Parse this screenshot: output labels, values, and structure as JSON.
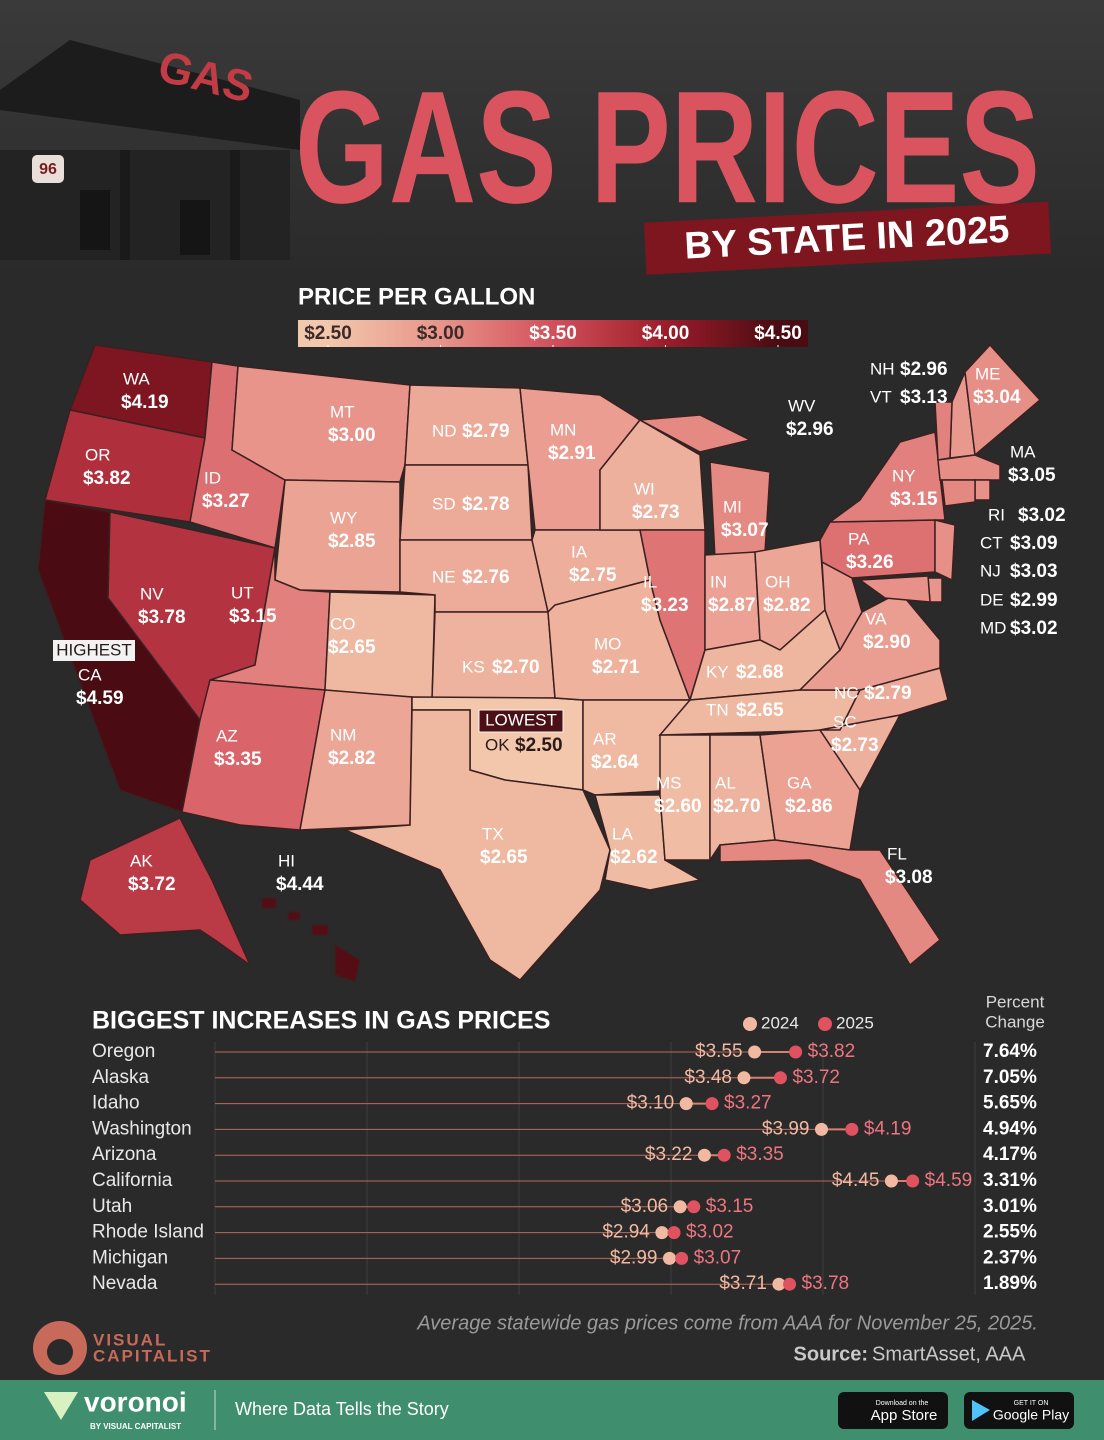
{
  "header": {
    "sign": "GAS",
    "route": "96",
    "title": "GAS PRICES",
    "subtitle": "BY STATE IN 2025"
  },
  "chart_data": [
    {
      "type": "choropleth",
      "title": "PRICE PER GALLON",
      "legend_ticks": [
        {
          "value": 2.5,
          "label": "$2.50"
        },
        {
          "value": 3.0,
          "label": "$3.00"
        },
        {
          "value": 3.5,
          "label": "$3.50"
        },
        {
          "value": 4.0,
          "label": "$4.00"
        },
        {
          "value": 4.5,
          "label": "$4.50"
        }
      ],
      "colors": [
        "#f2c7ab",
        "#e8948a",
        "#d2505b",
        "#9c1d2a",
        "#4a0b12"
      ],
      "categories": [
        "WA",
        "OR",
        "CA",
        "NV",
        "ID",
        "MT",
        "WY",
        "UT",
        "CO",
        "AZ",
        "NM",
        "ND",
        "SD",
        "NE",
        "KS",
        "OK",
        "TX",
        "MN",
        "IA",
        "MO",
        "AR",
        "LA",
        "WI",
        "IL",
        "MS",
        "MI",
        "IN",
        "OH",
        "KY",
        "TN",
        "AL",
        "GA",
        "FL",
        "SC",
        "NC",
        "VA",
        "WV",
        "PA",
        "NY",
        "NH",
        "VT",
        "ME",
        "MA",
        "RI",
        "CT",
        "NJ",
        "DE",
        "MD",
        "AK",
        "HI"
      ],
      "values": [
        4.19,
        3.82,
        4.59,
        3.78,
        3.27,
        3.0,
        2.85,
        3.15,
        2.65,
        3.35,
        2.82,
        2.79,
        2.78,
        2.76,
        2.7,
        2.5,
        2.65,
        2.91,
        2.75,
        2.71,
        2.64,
        2.62,
        2.73,
        3.23,
        2.6,
        3.07,
        2.87,
        2.82,
        2.68,
        2.65,
        2.7,
        2.86,
        3.08,
        2.73,
        2.79,
        2.9,
        2.96,
        3.26,
        3.15,
        2.96,
        3.13,
        3.04,
        3.05,
        3.02,
        3.09,
        3.03,
        2.99,
        3.02,
        3.72,
        4.44
      ],
      "value_labels": [
        "$4.19",
        "$3.82",
        "$4.59",
        "$3.78",
        "$3.27",
        "$3.00",
        "$2.85",
        "$3.15",
        "$2.65",
        "$3.35",
        "$2.82",
        "$2.79",
        "$2.78",
        "$2.76",
        "$2.70",
        "$2.50",
        "$2.65",
        "$2.91",
        "$2.75",
        "$2.71",
        "$2.64",
        "$2.62",
        "$2.73",
        "$3.23",
        "$2.60",
        "$3.07",
        "$2.87",
        "$2.82",
        "$2.68",
        "$2.65",
        "$2.70",
        "$2.86",
        "$3.08",
        "$2.73",
        "$2.79",
        "$2.90",
        "$2.96",
        "$3.26",
        "$3.15",
        "$2.96",
        "$3.13",
        "$3.04",
        "$3.05",
        "$3.02",
        "$3.09",
        "$3.03",
        "$2.99",
        "$3.02",
        "$3.72",
        "$4.44"
      ],
      "annotations": [
        "HIGHEST",
        "LOWEST"
      ]
    },
    {
      "type": "dumbbell",
      "title": "BIGGEST INCREASES IN GAS PRICES",
      "categories": [
        "Oregon",
        "Alaska",
        "Idaho",
        "Washington",
        "Arizona",
        "California",
        "Utah",
        "Rhode Island",
        "Michigan",
        "Nevada"
      ],
      "series": [
        {
          "name": "2024",
          "color": "#f2b9a2",
          "values": [
            3.55,
            3.48,
            3.1,
            3.99,
            3.22,
            4.45,
            3.06,
            2.94,
            2.99,
            3.71
          ],
          "value_labels": [
            "$3.55",
            "$3.48",
            "$3.10",
            "$3.99",
            "$3.22",
            "$4.45",
            "$3.06",
            "$2.94",
            "$2.99",
            "$3.71"
          ]
        },
        {
          "name": "2025",
          "color": "#e0525f",
          "values": [
            3.82,
            3.72,
            3.27,
            4.19,
            3.35,
            4.59,
            3.15,
            3.02,
            3.07,
            3.78
          ],
          "value_labels": [
            "$3.82",
            "$3.72",
            "$3.27",
            "$4.19",
            "$3.35",
            "$4.59",
            "$3.15",
            "$3.02",
            "$3.07",
            "$3.78"
          ]
        }
      ],
      "xlim": [
        0,
        5
      ],
      "xticks": [
        0,
        1,
        2,
        3,
        4,
        5
      ],
      "grid": true,
      "change_header": [
        "Percent",
        "Change"
      ],
      "change": {
        "values": [
          7.64,
          7.05,
          5.65,
          4.94,
          4.17,
          3.31,
          3.01,
          2.55,
          2.37,
          1.89
        ],
        "value_labels": [
          "7.64%",
          "7.05%",
          "5.65%",
          "4.94%",
          "4.17%",
          "3.31%",
          "3.01%",
          "2.55%",
          "2.37%",
          "1.89%"
        ]
      }
    }
  ],
  "notes": {
    "note": "Average statewide gas prices come from AAA for November 25, 2025.",
    "source_label": "Source:",
    "source": "SmartAsset, AAA"
  },
  "branding": {
    "vc_line1": "VISUAL",
    "vc_line2": "CAPITALIST",
    "voronoi": "voronoi",
    "voronoi_by": "BY VISUAL CAPITALIST",
    "tagline": "Where Data Tells the Story",
    "app_store_small": "Download on the",
    "app_store": "App Store",
    "google_small": "GET IT ON",
    "google": "Google Play"
  }
}
